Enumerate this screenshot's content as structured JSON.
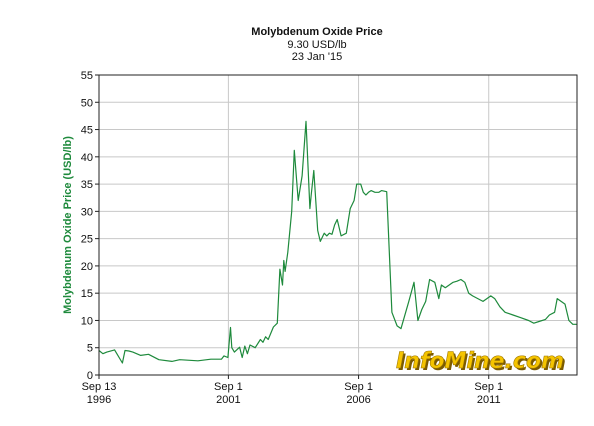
{
  "header": {
    "title": "Molybdenum Oxide Price",
    "price_line": "9.30 USD/lb",
    "date_line": "23 Jan '15"
  },
  "watermark": "InfoMine.com",
  "colors": {
    "line": "#1e8a3c",
    "ylabel": "#1e8a3c",
    "grid": "#c8c8c8",
    "watermark_fill": "#f5c400"
  },
  "chart_data": {
    "type": "line",
    "title": "Molybdenum Oxide Price",
    "subtitle": "9.30 USD/lb  23 Jan '15",
    "ylabel": "Molybdenum Oxide Price (USD/lb)",
    "xlabel": "",
    "ylim": [
      0,
      55
    ],
    "yticks": [
      0,
      5,
      10,
      15,
      20,
      25,
      30,
      35,
      40,
      45,
      50,
      55
    ],
    "xlim": [
      1996.7,
      2015.06
    ],
    "xticks": [
      {
        "x": 1996.7,
        "line1": "Sep 13",
        "line2": "1996"
      },
      {
        "x": 2001.67,
        "line1": "Sep 1",
        "line2": "2001"
      },
      {
        "x": 2006.67,
        "line1": "Sep 1",
        "line2": "2006"
      },
      {
        "x": 2011.67,
        "line1": "Sep 1",
        "line2": "2011"
      }
    ],
    "grid": true,
    "series": [
      {
        "name": "",
        "x": [
          1996.7,
          1996.85,
          1997.0,
          1997.3,
          1997.6,
          1997.7,
          1997.85,
          1998.0,
          1998.3,
          1998.6,
          1999.0,
          1999.5,
          1999.8,
          2000.5,
          2001.0,
          2001.4,
          2001.5,
          2001.65,
          2001.75,
          2001.8,
          2001.9,
          2002.1,
          2002.2,
          2002.3,
          2002.4,
          2002.5,
          2002.7,
          2002.9,
          2003.0,
          2003.1,
          2003.2,
          2003.4,
          2003.55,
          2003.65,
          2003.75,
          2003.8,
          2003.85,
          2003.95,
          2004.1,
          2004.2,
          2004.35,
          2004.5,
          2004.65,
          2004.8,
          2004.85,
          2004.95,
          2005.1,
          2005.2,
          2005.35,
          2005.45,
          2005.55,
          2005.65,
          2005.75,
          2005.85,
          2006.0,
          2006.2,
          2006.35,
          2006.5,
          2006.6,
          2006.75,
          2006.85,
          2006.95,
          2007.05,
          2007.15,
          2007.3,
          2007.45,
          2007.55,
          2007.75,
          2007.95,
          2008.15,
          2008.3,
          2008.6,
          2008.8,
          2008.95,
          2009.1,
          2009.25,
          2009.4,
          2009.6,
          2009.75,
          2009.85,
          2010.0,
          2010.15,
          2010.3,
          2010.45,
          2010.6,
          2010.75,
          2010.9,
          2011.05,
          2011.25,
          2011.45,
          2011.6,
          2011.75,
          2011.9,
          2012.1,
          2012.3,
          2012.6,
          2012.9,
          2013.2,
          2013.4,
          2013.6,
          2013.85,
          2014.0,
          2014.2,
          2014.3,
          2014.45,
          2014.6,
          2014.75,
          2014.9,
          2015.06
        ],
        "y": [
          4.5,
          3.9,
          4.2,
          4.6,
          2.2,
          4.5,
          4.4,
          4.2,
          3.6,
          3.8,
          2.8,
          2.5,
          2.8,
          2.6,
          2.9,
          2.9,
          3.5,
          3.2,
          8.7,
          5.0,
          4.2,
          5.1,
          3.2,
          5.3,
          3.9,
          5.5,
          5.0,
          6.5,
          6.0,
          7.0,
          6.5,
          8.8,
          9.5,
          19.4,
          16.5,
          21.0,
          19.0,
          22.5,
          30.0,
          41.2,
          32.0,
          36.5,
          46.5,
          30.5,
          33.0,
          37.5,
          26.5,
          24.5,
          26.0,
          25.5,
          26.0,
          25.8,
          27.5,
          28.5,
          25.5,
          26.0,
          30.5,
          32.0,
          35.0,
          35.0,
          33.5,
          33.0,
          33.5,
          33.8,
          33.5,
          33.5,
          33.8,
          33.6,
          11.5,
          9.0,
          8.5,
          13.5,
          17.0,
          10.0,
          12.0,
          13.5,
          17.5,
          17.0,
          14.0,
          16.5,
          16.0,
          16.5,
          17.0,
          17.2,
          17.5,
          17.0,
          15.0,
          14.5,
          14.0,
          13.5,
          14.0,
          14.5,
          14.0,
          12.5,
          11.5,
          11.0,
          10.5,
          10.0,
          9.5,
          9.8,
          10.2,
          11.0,
          11.5,
          14.0,
          13.5,
          13.0,
          10.0,
          9.3,
          9.3
        ]
      }
    ]
  }
}
